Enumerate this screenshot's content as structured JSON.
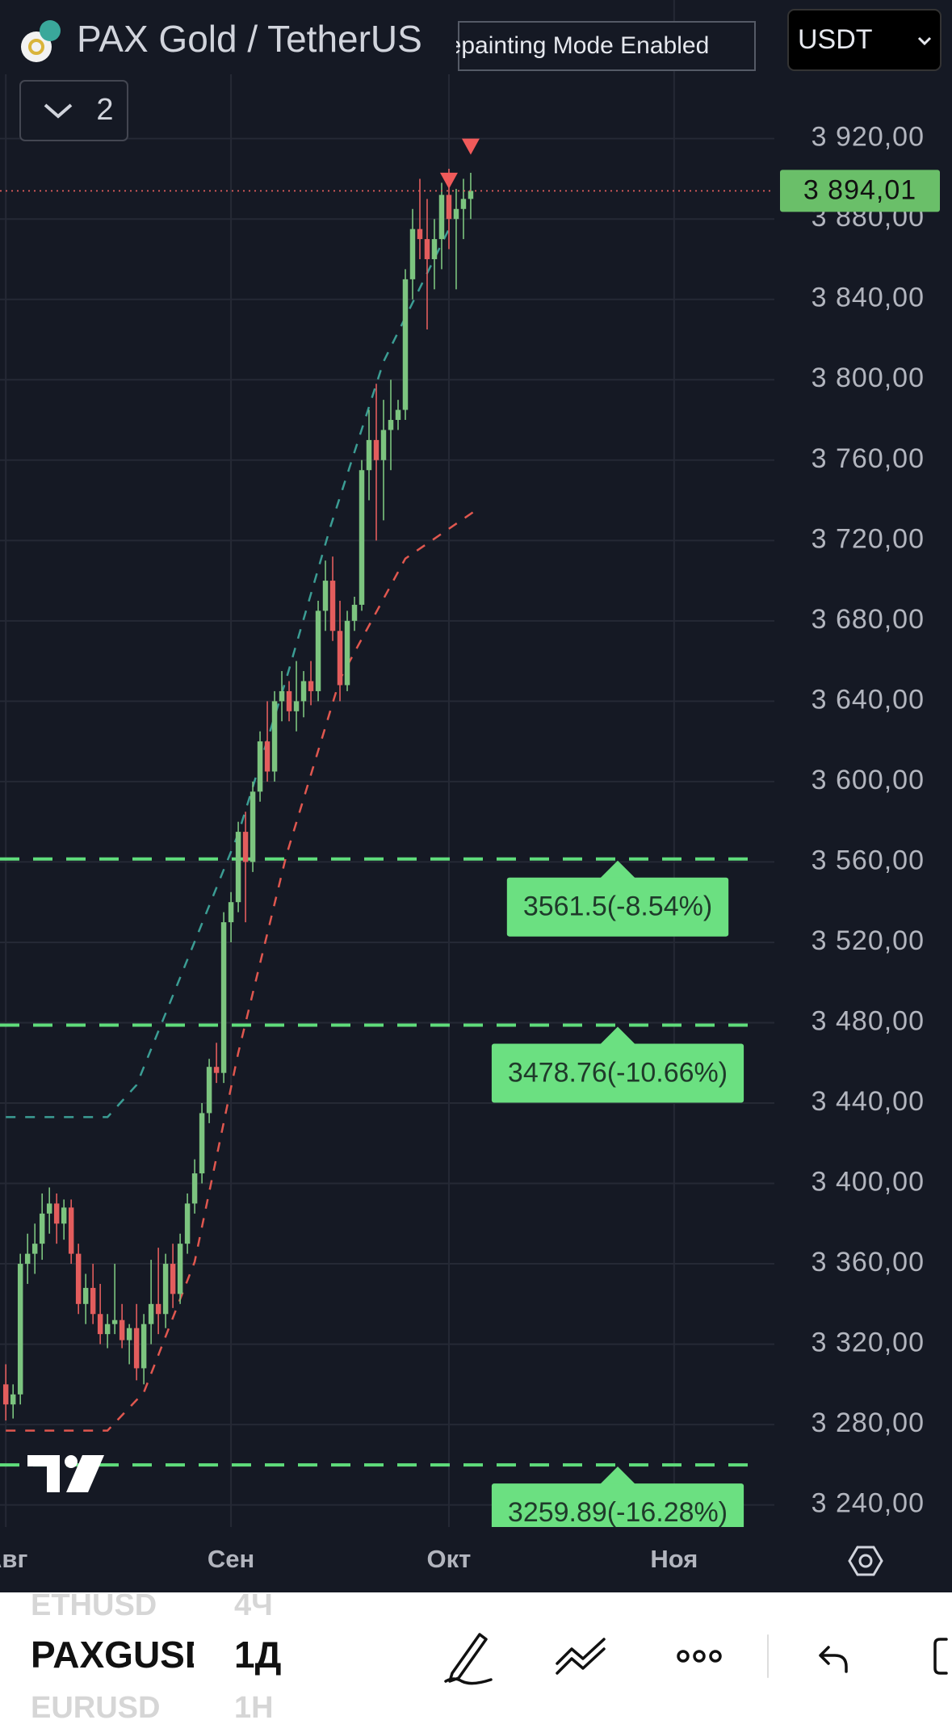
{
  "chart_data": {
    "type": "candlestick",
    "title": "PAX Gold / TetherUS",
    "x": [
      0,
      1,
      2,
      3,
      4,
      5,
      6,
      7,
      8,
      9,
      10,
      11,
      12,
      13,
      14,
      15,
      16,
      17,
      18,
      19,
      20,
      21,
      22,
      23,
      24,
      25,
      26,
      27,
      28,
      29,
      30,
      31,
      32,
      33,
      34,
      35,
      36,
      37,
      38,
      39,
      40,
      41,
      42,
      43,
      44,
      45,
      46,
      47,
      48,
      49,
      50,
      51,
      52,
      53,
      54,
      55,
      56,
      57,
      58,
      59,
      60,
      61,
      62,
      63,
      64
    ],
    "open": [
      3300,
      3290,
      3295,
      3360,
      3365,
      3370,
      3385,
      3390,
      3380,
      3388,
      3365,
      3340,
      3348,
      3335,
      3325,
      3330,
      3332,
      3322,
      3328,
      3308,
      3330,
      3340,
      3335,
      3360,
      3345,
      3370,
      3390,
      3405,
      3435,
      3458,
      3455,
      3530,
      3540,
      3575,
      3560,
      3595,
      3620,
      3605,
      3640,
      3645,
      3635,
      3640,
      3650,
      3645,
      3685,
      3700,
      3675,
      3648,
      3680,
      3688,
      3755,
      3770,
      3760,
      3775,
      3780,
      3785,
      3850,
      3875,
      3870,
      3860,
      3870,
      3892,
      3880,
      3885,
      3890
    ],
    "high": [
      3310,
      3300,
      3365,
      3375,
      3380,
      3395,
      3398,
      3395,
      3392,
      3392,
      3370,
      3355,
      3360,
      3350,
      3335,
      3360,
      3340,
      3330,
      3340,
      3335,
      3362,
      3368,
      3365,
      3370,
      3375,
      3395,
      3412,
      3440,
      3462,
      3470,
      3535,
      3545,
      3580,
      3585,
      3600,
      3625,
      3640,
      3645,
      3655,
      3650,
      3660,
      3655,
      3660,
      3690,
      3710,
      3712,
      3690,
      3685,
      3692,
      3760,
      3785,
      3798,
      3790,
      3800,
      3790,
      3855,
      3885,
      3900,
      3890,
      3880,
      3898,
      3905,
      3895,
      3900,
      3903
    ],
    "low": [
      3282,
      3283,
      3290,
      3350,
      3355,
      3362,
      3375,
      3370,
      3372,
      3360,
      3335,
      3330,
      3330,
      3320,
      3318,
      3325,
      3318,
      3310,
      3302,
      3300,
      3320,
      3325,
      3328,
      3338,
      3340,
      3365,
      3385,
      3400,
      3430,
      3450,
      3450,
      3520,
      3535,
      3530,
      3555,
      3590,
      3600,
      3600,
      3630,
      3630,
      3625,
      3632,
      3638,
      3640,
      3675,
      3670,
      3640,
      3645,
      3675,
      3685,
      3740,
      3720,
      3730,
      3755,
      3775,
      3780,
      3840,
      3860,
      3825,
      3845,
      3855,
      3865,
      3845,
      3870,
      3880
    ],
    "close": [
      3290,
      3295,
      3360,
      3365,
      3370,
      3385,
      3390,
      3380,
      3388,
      3365,
      3340,
      3348,
      3335,
      3325,
      3330,
      3332,
      3322,
      3328,
      3308,
      3330,
      3340,
      3335,
      3360,
      3345,
      3370,
      3390,
      3405,
      3435,
      3458,
      3455,
      3530,
      3540,
      3575,
      3560,
      3595,
      3620,
      3605,
      3640,
      3645,
      3635,
      3640,
      3650,
      3645,
      3685,
      3700,
      3675,
      3648,
      3680,
      3688,
      3755,
      3770,
      3760,
      3775,
      3780,
      3785,
      3850,
      3875,
      3870,
      3860,
      3870,
      3892,
      3880,
      3885,
      3890,
      3894.01
    ],
    "up_color": "#7cc47f",
    "down_color": "#e35d5d",
    "xlim": [
      -0.8,
      105.8
    ],
    "xticks": [
      {
        "value": 0,
        "label": "Авг"
      },
      {
        "value": 31,
        "label": "Сен"
      },
      {
        "value": 61,
        "label": "Окт"
      },
      {
        "value": 92,
        "label": "Ноя"
      }
    ],
    "ylim": [
      3229,
      3989
    ],
    "yticks": [
      {
        "value": 3240,
        "label": "3 240,00"
      },
      {
        "value": 3280,
        "label": "3 280,00"
      },
      {
        "value": 3320,
        "label": "3 320,00"
      },
      {
        "value": 3360,
        "label": "3 360,00"
      },
      {
        "value": 3400,
        "label": "3 400,00"
      },
      {
        "value": 3440,
        "label": "3 440,00"
      },
      {
        "value": 3480,
        "label": "3 480,00"
      },
      {
        "value": 3520,
        "label": "3 520,00"
      },
      {
        "value": 3560,
        "label": "3 560,00"
      },
      {
        "value": 3600,
        "label": "3 600,00"
      },
      {
        "value": 3640,
        "label": "3 640,00"
      },
      {
        "value": 3680,
        "label": "3 680,00"
      },
      {
        "value": 3720,
        "label": "3 720,00"
      },
      {
        "value": 3760,
        "label": "3 760,00"
      },
      {
        "value": 3800,
        "label": "3 800,00"
      },
      {
        "value": 3840,
        "label": "3 840,00"
      },
      {
        "value": 3880,
        "label": "3 880,00"
      },
      {
        "value": 3920,
        "label": "3 920,00"
      }
    ],
    "grid": true,
    "levels": [
      {
        "value": 3561.5,
        "label": "3561.5(-8.54%)"
      },
      {
        "value": 3478.76,
        "label": "3478.76(-10.66%)"
      },
      {
        "value": 3259.89,
        "label": "3259.89(-16.28%)"
      }
    ],
    "level_color": "#5fdc7b",
    "bands": [
      {
        "color": "#3b9d94",
        "x": [
          0,
          14,
          18,
          23.5,
          32,
          38.6,
          44.7,
          52,
          61
        ],
        "values": [
          3433,
          3433,
          3449,
          3498,
          3574,
          3651,
          3727,
          3809,
          3875
        ]
      },
      {
        "color": "#e0574f",
        "x": [
          0,
          14,
          19,
          26,
          32,
          38.6,
          46,
          55,
          64.7
        ],
        "values": [
          3277,
          3277,
          3296,
          3361,
          3465,
          3563,
          3651,
          3711,
          3735
        ]
      }
    ],
    "signals": {
      "color": "#f05a5a",
      "x": [
        61,
        64
      ],
      "values": [
        3899,
        3916
      ]
    },
    "last_price": {
      "value": 3894.01,
      "label": "3 894,01"
    }
  },
  "header": {
    "badge": "Repainting Mode Enabled",
    "currency": "USDT",
    "indicator_count": 2
  },
  "toolbar": {
    "symbols": [
      "ETHUSD",
      "PAXGUSD",
      "EURUSD"
    ],
    "intervals": [
      "4Ч",
      "1Д",
      "1H"
    ]
  }
}
